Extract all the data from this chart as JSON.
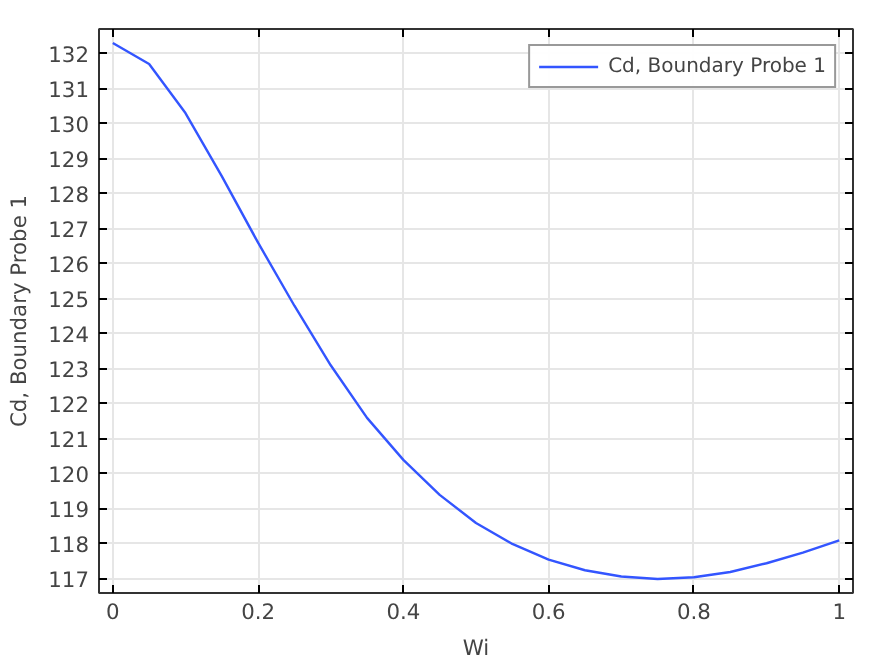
{
  "chart_data": {
    "type": "line",
    "xlabel": "Wi",
    "ylabel": "Cd, Boundary Probe 1",
    "x": [
      0,
      0.05,
      0.1,
      0.15,
      0.2,
      0.25,
      0.3,
      0.35,
      0.4,
      0.45,
      0.5,
      0.55,
      0.6,
      0.65,
      0.7,
      0.75,
      0.8,
      0.85,
      0.9,
      0.95,
      1.0
    ],
    "series": [
      {
        "name": "Cd, Boundary Probe 1",
        "color": "#3355ff",
        "values": [
          132.3,
          131.7,
          130.3,
          128.5,
          126.6,
          124.8,
          123.1,
          121.6,
          120.4,
          119.4,
          118.6,
          118.0,
          117.55,
          117.25,
          117.07,
          117.0,
          117.05,
          117.2,
          117.45,
          117.75,
          118.1
        ]
      }
    ],
    "xlim": [
      -0.019,
      1.019
    ],
    "ylim": [
      116.6,
      132.7
    ],
    "xticks": [
      0,
      0.2,
      0.4,
      0.6,
      0.8,
      1
    ],
    "yticks": [
      117,
      118,
      119,
      120,
      121,
      122,
      123,
      124,
      125,
      126,
      127,
      128,
      129,
      130,
      131,
      132
    ],
    "grid": true,
    "legend": "top right",
    "marker": "none",
    "line_style": "solid"
  }
}
